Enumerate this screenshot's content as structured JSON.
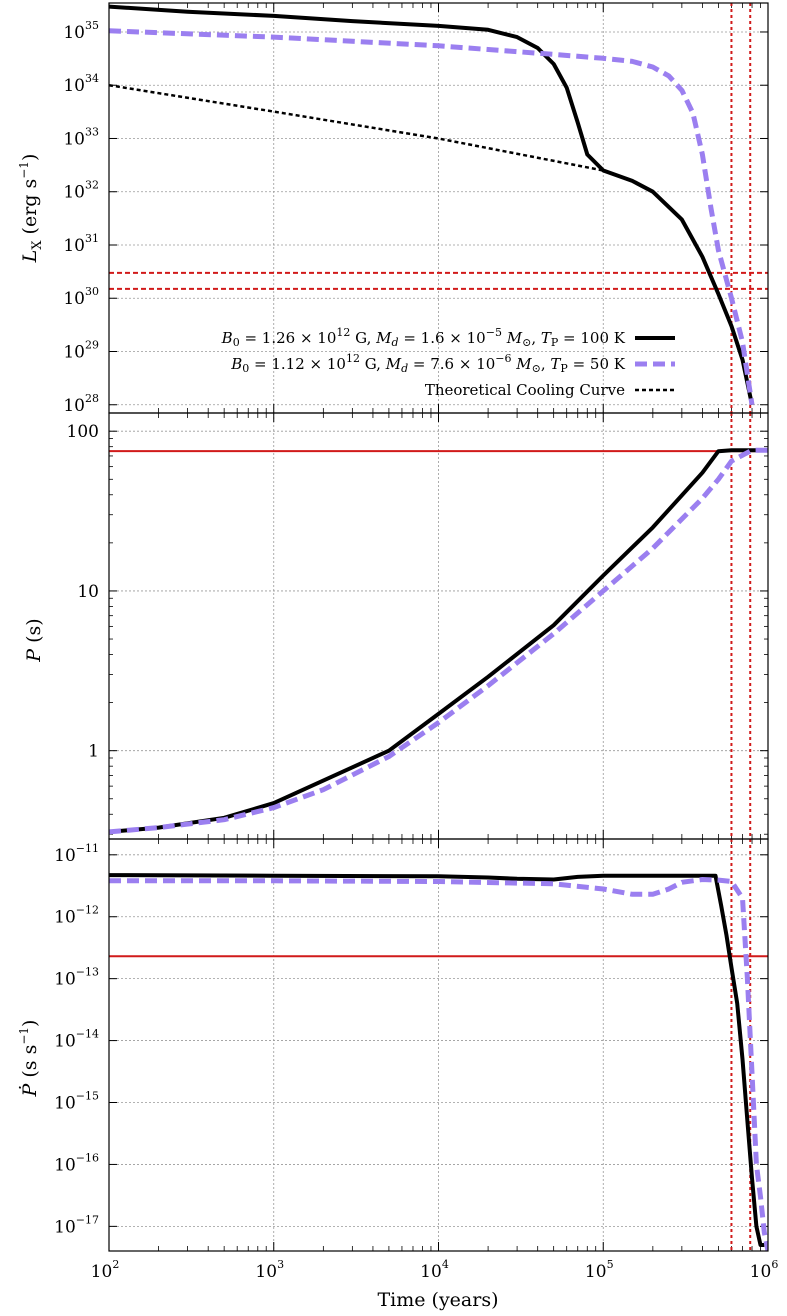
{
  "figure": {
    "xlabel": "Time (years)",
    "x_tick_labels": [
      "10",
      "10",
      "10",
      "10",
      "10"
    ],
    "x_tick_exponents": [
      "2",
      "3",
      "4",
      "5",
      "6"
    ]
  },
  "chart_data": [
    {
      "type": "line",
      "ylabel": "L_X (erg s^-1)",
      "x_scale": "log",
      "y_scale": "log",
      "xlim": [
        100,
        1000000
      ],
      "ylim": [
        7e+27,
        3.5e+35
      ],
      "grid": true,
      "legend_position": "bottom-right",
      "y_tick_labels": [
        "10",
        "10",
        "10",
        "10",
        "10",
        "10",
        "10",
        "10"
      ],
      "y_tick_exponents": [
        "35",
        "34",
        "33",
        "32",
        "31",
        "30",
        "29",
        "28"
      ],
      "legend": [
        "B0 = 1.26 × 10^12 G, Md = 1.6 × 10^-5 M⊙, TP = 100 K",
        "B0 = 1.12 × 10^12 G, Md = 7.6 × 10^-6 M⊙, TP = 50 K",
        "Theoretical Cooling Curve"
      ],
      "series": [
        {
          "name": "B0 = 1.26 × 10^12 G, Md = 1.6 × 10^-5 M⊙, TP = 100 K",
          "style": "solid",
          "color": "#000000",
          "x": [
            100,
            300,
            1000,
            3000,
            10000,
            20000,
            30000,
            40000,
            50000,
            60000,
            70000,
            80000,
            100000,
            150000,
            200000,
            300000,
            400000,
            500000,
            600000,
            700000,
            800000
          ],
          "y": [
            3e+35,
            2.4e+35,
            2e+35,
            1.6e+35,
            1.3e+35,
            1.1e+35,
            8e+34,
            5e+34,
            2.5e+34,
            9e+33,
            2e+33,
            5e+32,
            2.5e+32,
            1.6e+32,
            1e+32,
            3e+31,
            6e+30,
            1.2e+30,
            3e+29,
            7e+28,
            1e+28
          ]
        },
        {
          "name": "B0 = 1.12 × 10^12 G, Md = 7.6 × 10^-6 M⊙, TP = 50 K",
          "style": "dashed",
          "color": "#9b7ff0",
          "x": [
            100,
            1000,
            10000,
            50000,
            100000,
            150000,
            200000,
            250000,
            300000,
            350000,
            400000,
            450000,
            500000,
            600000,
            700000,
            800000
          ],
          "y": [
            1.05e+35,
            8e+34,
            5.5e+34,
            3.8e+34,
            3.2e+34,
            2.8e+34,
            2.2e+34,
            1.5e+34,
            8e+33,
            3e+33,
            5e+32,
            5e+31,
            8e+30,
            1e+30,
            1.5e+29,
            1e+28
          ]
        },
        {
          "name": "Theoretical Cooling Curve",
          "style": "dotted",
          "color": "#000000",
          "x": [
            100,
            1000,
            10000,
            100000
          ],
          "y": [
            1e+34,
            3.2e+33,
            1e+33,
            2.5e+32
          ]
        }
      ],
      "hlines": [
        {
          "y": 3e+30,
          "style": "dashed",
          "color": "#d11a1a"
        },
        {
          "y": 1.5e+30,
          "style": "dashed",
          "color": "#d11a1a"
        }
      ],
      "vlines": [
        {
          "x": 600000,
          "style": "dotted",
          "color": "#d11a1a"
        },
        {
          "x": 780000,
          "style": "dotted",
          "color": "#d11a1a"
        }
      ]
    },
    {
      "type": "line",
      "ylabel": "P (s)",
      "x_scale": "log",
      "y_scale": "log",
      "xlim": [
        100,
        1000000
      ],
      "ylim": [
        0.28,
        130
      ],
      "grid": true,
      "y_tick_values": [
        100,
        10,
        1
      ],
      "y_tick_labels": [
        "100",
        "10",
        "1"
      ],
      "series": [
        {
          "name": "B0 = 1.26 × 10^12 G, Md = 1.6 × 10^-5 M⊙, TP = 100 K",
          "style": "solid",
          "color": "#000000",
          "x": [
            100,
            200,
            500,
            1000,
            2000,
            5000,
            10000,
            20000,
            50000,
            100000,
            200000,
            400000,
            500000,
            600000,
            1000000
          ],
          "y": [
            0.31,
            0.33,
            0.38,
            0.47,
            0.65,
            1.0,
            1.7,
            2.9,
            6.1,
            12.5,
            25,
            55,
            75,
            76,
            76
          ]
        },
        {
          "name": "B0 = 1.12 × 10^12 G, Md = 7.6 × 10^-6 M⊙, TP = 50 K",
          "style": "dashed",
          "color": "#9b7ff0",
          "x": [
            100,
            200,
            500,
            1000,
            2000,
            5000,
            10000,
            20000,
            50000,
            100000,
            200000,
            400000,
            500000,
            600000,
            800000,
            1000000
          ],
          "y": [
            0.31,
            0.33,
            0.37,
            0.44,
            0.57,
            0.92,
            1.5,
            2.55,
            5.4,
            10,
            18.5,
            38,
            50,
            65,
            76,
            76
          ]
        }
      ],
      "hlines": [
        {
          "y": 75,
          "style": "solid",
          "color": "#d11a1a"
        }
      ],
      "vlines": [
        {
          "x": 600000,
          "style": "dotted",
          "color": "#d11a1a"
        },
        {
          "x": 780000,
          "style": "dotted",
          "color": "#d11a1a"
        }
      ]
    },
    {
      "type": "line",
      "ylabel": "Ṗ (s s^-1)",
      "x_scale": "log",
      "y_scale": "log",
      "xlim": [
        100,
        1000000
      ],
      "ylim": [
        4e-18,
        1.8e-11
      ],
      "grid": true,
      "y_tick_labels": [
        "10",
        "10",
        "10",
        "10",
        "10",
        "10",
        "10"
      ],
      "y_tick_exponents": [
        "-11",
        "-12",
        "-13",
        "-14",
        "-15",
        "-16",
        "-17"
      ],
      "series": [
        {
          "name": "B0 = 1.26 × 10^12 G, Md = 1.6 × 10^-5 M⊙, TP = 100 K",
          "style": "solid",
          "color": "#000000",
          "x": [
            100,
            1000,
            10000,
            20000,
            30000,
            50000,
            70000,
            100000,
            200000,
            400000,
            480000,
            520000,
            560000,
            600000,
            650000,
            700000,
            750000,
            800000,
            850000,
            900000,
            950000
          ],
          "y": [
            4.7e-12,
            4.6e-12,
            4.5e-12,
            4.3e-12,
            4.1e-12,
            4e-12,
            4.4e-12,
            4.6e-12,
            4.6e-12,
            4.6e-12,
            4.6e-12,
            1.5e-12,
            5e-13,
            1.5e-13,
            4e-14,
            5e-15,
            5e-16,
            6e-17,
            1e-17,
            5e-18,
            5e-18
          ]
        },
        {
          "name": "B0 = 1.12 × 10^12 G, Md = 7.6 × 10^-6 M⊙, TP = 50 K",
          "style": "dashed",
          "color": "#9b7ff0",
          "x": [
            100,
            1000,
            10000,
            50000,
            100000,
            150000,
            200000,
            250000,
            300000,
            400000,
            500000,
            600000,
            700000,
            750000,
            800000,
            850000,
            900000,
            950000,
            1000000
          ],
          "y": [
            3.8e-12,
            3.8e-12,
            3.7e-12,
            3.4e-12,
            2.8e-12,
            2.3e-12,
            2.3e-12,
            2.8e-12,
            3.6e-12,
            4e-12,
            3.9e-12,
            3.7e-12,
            2e-12,
            1e-13,
            3e-15,
            1e-16,
            3e-17,
            8e-18,
            4e-18
          ]
        }
      ],
      "hlines": [
        {
          "y": 2.3e-13,
          "style": "solid",
          "color": "#d11a1a"
        }
      ],
      "vlines": [
        {
          "x": 600000,
          "style": "dotted",
          "color": "#d11a1a"
        },
        {
          "x": 780000,
          "style": "dotted",
          "color": "#d11a1a"
        }
      ]
    }
  ]
}
